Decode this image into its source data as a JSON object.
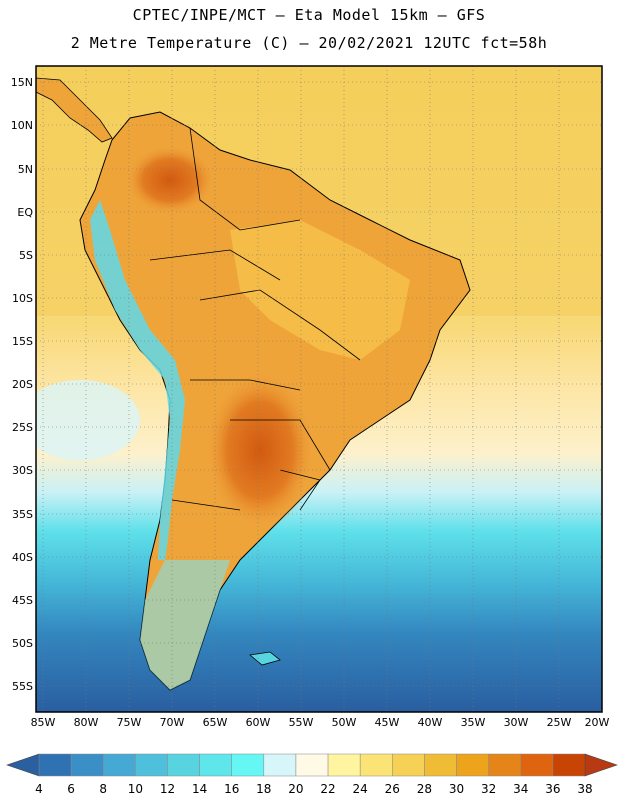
{
  "header": {
    "line1": "CPTEC/INPE/MCT –  Eta Model 15km – GFS",
    "line2": "2 Metre Temperature (C) – 20/02/2021 12UTC fct=58h"
  },
  "axes": {
    "lat_labels": [
      "15N",
      "10N",
      "5N",
      "EQ",
      "5S",
      "10S",
      "15S",
      "20S",
      "25S",
      "30S",
      "35S",
      "40S",
      "45S",
      "50S",
      "55S"
    ],
    "lon_labels": [
      "85W",
      "80W",
      "75W",
      "70W",
      "65W",
      "60W",
      "55W",
      "50W",
      "45W",
      "40W",
      "35W",
      "30W",
      "25W",
      "20W"
    ]
  },
  "colorbar": {
    "labels": [
      "4",
      "6",
      "8",
      "10",
      "12",
      "14",
      "16",
      "18",
      "20",
      "22",
      "24",
      "26",
      "28",
      "30",
      "32",
      "34",
      "36",
      "38"
    ],
    "colors": [
      "#2a5fa0",
      "#2f72b4",
      "#3a8fc7",
      "#45a9d3",
      "#4fc0dc",
      "#58d4e0",
      "#5ee6ea",
      "#66f7f5",
      "#d6f6fa",
      "#fffae6",
      "#fff4a0",
      "#fbe475",
      "#f6d155",
      "#f0bb35",
      "#eda31c",
      "#e58418",
      "#de6410",
      "#c84405",
      "#b83a12"
    ]
  },
  "colors": {
    "ocean_warm": "#f6d46a",
    "ocean_mid": "#fde3a0",
    "land_hot": "#d96a17",
    "land_warm": "#efa43a",
    "andes_cold": "#5fd9ea",
    "south_cold": "#2d6aa8"
  }
}
